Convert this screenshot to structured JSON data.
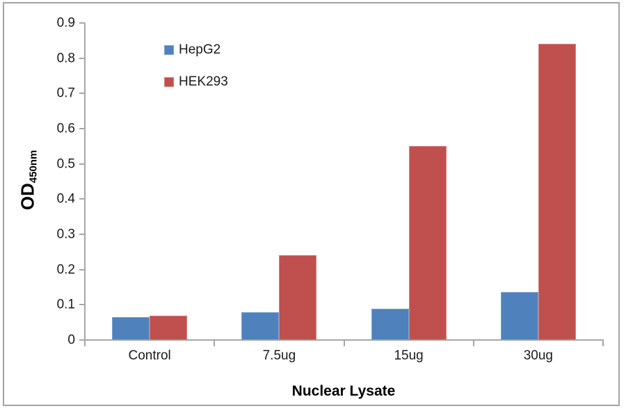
{
  "chart_data": {
    "type": "bar",
    "categories": [
      "Control",
      "7.5ug",
      "15ug",
      "30ug"
    ],
    "series": [
      {
        "name": "HepG2",
        "color": "#4F81BD",
        "border_color": "#7FA4CE",
        "values": [
          0.065,
          0.078,
          0.088,
          0.137
        ]
      },
      {
        "name": "HEK293",
        "color": "#C0504D",
        "border_color": "#D28280",
        "values": [
          0.07,
          0.24,
          0.55,
          0.84
        ]
      }
    ],
    "xlabel": "Nuclear Lysate",
    "ylabel_main": "OD",
    "ylabel_sub": "450nm",
    "ylim": [
      0,
      0.9
    ],
    "ytick_step": 0.1,
    "ytick_labels": [
      "0",
      "0.1",
      "0.2",
      "0.3",
      "0.4",
      "0.5",
      "0.6",
      "0.7",
      "0.8",
      "0.9"
    ],
    "grid": false,
    "legend_position": "inside-top-left",
    "axis_color": "#A6A6A6",
    "frame_color": "#A3A3A3",
    "text_color": "#1a1a1a"
  }
}
